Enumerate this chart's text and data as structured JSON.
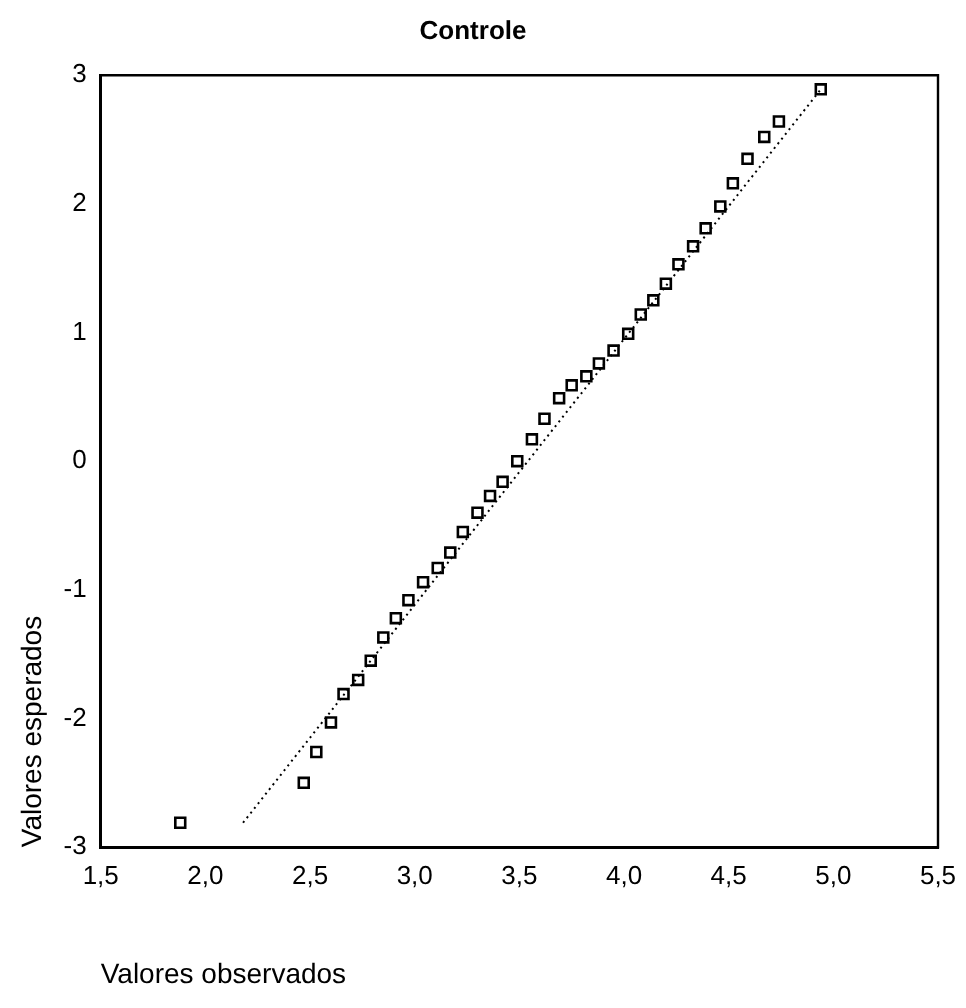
{
  "chart_data": {
    "type": "scatter",
    "title": "Controle",
    "xlabel": "Valores observados",
    "ylabel": "Valores esperados",
    "xlim": [
      1.5,
      5.5
    ],
    "xticks": [
      {
        "value": 1.5,
        "label": "1,5"
      },
      {
        "value": 2,
        "label": "2,0"
      },
      {
        "value": 2.5,
        "label": "2,5"
      },
      {
        "value": 3,
        "label": "3,0"
      },
      {
        "value": 3.5,
        "label": "3,5"
      },
      {
        "value": 4,
        "label": "4,0"
      },
      {
        "value": 4.5,
        "label": "4,5"
      },
      {
        "value": 5,
        "label": "5,0"
      },
      {
        "value": 5.5,
        "label": "5,5"
      }
    ],
    "ylim": [
      -3,
      3
    ],
    "yticks": [
      -3,
      -2,
      -1,
      0,
      1,
      2,
      3
    ],
    "grid": false,
    "legend": false,
    "series": [
      {
        "color": "#000000",
        "marker": "square",
        "x": [
          1.88,
          2.47,
          2.53,
          2.6,
          2.66,
          2.73,
          2.79,
          2.85,
          2.91,
          2.97,
          3.04,
          3.11,
          3.17,
          3.23,
          3.3,
          3.36,
          3.42,
          3.49,
          3.56,
          3.62,
          3.69,
          3.75,
          3.82,
          3.88,
          3.95,
          4.02,
          4.08,
          4.14,
          4.2,
          4.26,
          4.33,
          4.39,
          4.46,
          4.52,
          4.59,
          4.67,
          4.74,
          4.94
        ],
        "values": [
          -2.81,
          -2.5,
          -2.26,
          -2.03,
          -1.81,
          -1.7,
          -1.55,
          -1.37,
          -1.22,
          -1.08,
          -0.94,
          -0.83,
          -0.71,
          -0.55,
          -0.4,
          -0.27,
          -0.16,
          0,
          0.17,
          0.33,
          0.49,
          0.59,
          0.66,
          0.76,
          0.86,
          0.99,
          1.14,
          1.25,
          1.38,
          1.53,
          1.67,
          1.81,
          1.98,
          2.16,
          2.35,
          2.52,
          2.64,
          2.89
        ]
      },
      {
        "type": "line",
        "color": "#000000",
        "marker": "none",
        "line_style": "dotted",
        "x": [
          2.18,
          4.94
        ],
        "values": [
          -2.81,
          2.89
        ]
      }
    ]
  }
}
